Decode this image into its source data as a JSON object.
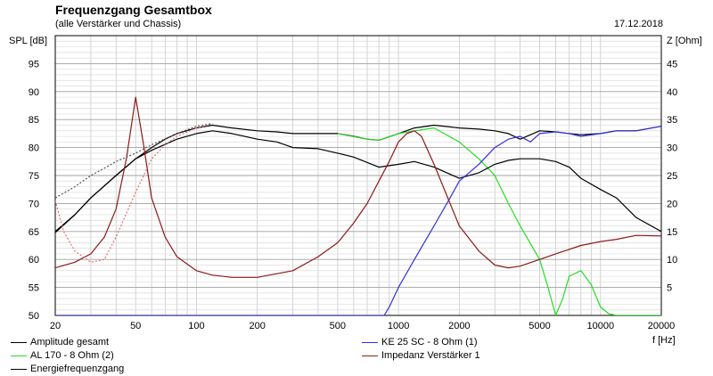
{
  "header": {
    "title": "Frequenzgang Gesamtbox",
    "subtitle": "(alle Verstärker und Chassis)",
    "date": "17.12.2018"
  },
  "chart_data": {
    "type": "line",
    "title": "Frequenzgang Gesamtbox",
    "subtitle": "(alle Verstärker und Chassis)",
    "xlabel": "f [Hz]",
    "ylabel": "SPL [dB]",
    "y2label": "Z [Ohm]",
    "xscale": "log",
    "xlim": [
      20,
      20000
    ],
    "ylim": [
      50,
      100
    ],
    "y2lim": [
      0,
      50
    ],
    "xticks": [
      20,
      50,
      100,
      200,
      500,
      1000,
      2000,
      5000,
      10000,
      20000
    ],
    "xtick_labels": [
      "20",
      "50",
      "100",
      "200",
      "500",
      "1000",
      "2000",
      "5000",
      "10000",
      "20000"
    ],
    "yticks": [
      50,
      55,
      60,
      65,
      70,
      75,
      80,
      85,
      90,
      95
    ],
    "y2ticks": [
      5,
      10,
      15,
      20,
      25,
      30,
      35,
      40,
      45
    ],
    "grid": true,
    "legend_position": "bottom",
    "series": [
      {
        "name": "Amplitude gesamt",
        "color": "#000000",
        "axis": "left",
        "x": [
          20,
          25,
          30,
          40,
          50,
          60,
          70,
          80,
          100,
          120,
          150,
          200,
          250,
          300,
          400,
          500,
          600,
          700,
          800,
          1000,
          1200,
          1500,
          2000,
          2500,
          3000,
          3500,
          4000,
          5000,
          6000,
          7000,
          8000,
          10000,
          12000,
          15000,
          20000
        ],
        "values": [
          64.8,
          68,
          71,
          75,
          78,
          80,
          81.5,
          82.5,
          83.5,
          84,
          83.5,
          83,
          82.8,
          82.5,
          82.5,
          82.5,
          82,
          81.5,
          81.3,
          82.5,
          83.5,
          84,
          83.5,
          83.3,
          83,
          82.5,
          81.5,
          83,
          82.8,
          82.5,
          82.3,
          82.5,
          83,
          83,
          83.8
        ]
      },
      {
        "name": "AL 170 - 8 Ohm (2)",
        "color": "#22dd22",
        "axis": "left",
        "x": [
          500,
          700,
          800,
          1000,
          1200,
          1500,
          2000,
          2500,
          3000,
          3500,
          4000,
          5000,
          5500,
          6000,
          6500,
          7000,
          8000,
          9000,
          10000,
          11000,
          12000,
          15000,
          20000
        ],
        "values": [
          82.5,
          81.5,
          81.3,
          82.5,
          83,
          83.5,
          81,
          78,
          75,
          70,
          66,
          60,
          55,
          50,
          53,
          57,
          58,
          55.5,
          51.5,
          50.3,
          50,
          50,
          50
        ]
      },
      {
        "name": "Energiefrequenzgang",
        "color": "#000000",
        "axis": "left",
        "x": [
          20,
          25,
          30,
          40,
          50,
          60,
          80,
          100,
          120,
          150,
          200,
          250,
          300,
          400,
          500,
          600,
          800,
          1000,
          1200,
          1500,
          2000,
          2500,
          3000,
          3500,
          4000,
          5000,
          6000,
          7000,
          8000,
          10000,
          12000,
          15000,
          20000
        ],
        "values": [
          65,
          68,
          71,
          75,
          78,
          79.5,
          81.5,
          82.5,
          83,
          82.5,
          81.5,
          81,
          80,
          79.8,
          79,
          78.3,
          76.5,
          77,
          77.5,
          76.5,
          74.5,
          75.5,
          77,
          77.7,
          78,
          78,
          77.5,
          76.5,
          74.5,
          72.5,
          71,
          67.5,
          65
        ]
      },
      {
        "name": "KE 25 SC - 8 Ohm (1)",
        "color": "#3030e0",
        "axis": "left",
        "x": [
          20,
          500,
          850,
          900,
          1000,
          1200,
          1500,
          1800,
          2000,
          2500,
          3000,
          3500,
          4000,
          4500,
          5000,
          6000,
          7000,
          8000,
          10000,
          12000,
          15000,
          20000
        ],
        "values": [
          50,
          50,
          50,
          51.5,
          55,
          60,
          66,
          71,
          74,
          77,
          80,
          81.5,
          82,
          81,
          82.5,
          82.8,
          82.5,
          82,
          82.5,
          83,
          83,
          83.8
        ]
      },
      {
        "name": "Impedanz Verstärker 1",
        "color": "#8b1a1a",
        "axis": "right",
        "x": [
          20,
          25,
          30,
          35,
          40,
          45,
          50,
          55,
          60,
          70,
          80,
          100,
          120,
          150,
          200,
          300,
          400,
          500,
          600,
          700,
          800,
          900,
          1000,
          1100,
          1200,
          1300,
          1500,
          1800,
          2000,
          2500,
          3000,
          3500,
          4000,
          5000,
          6000,
          8000,
          10000,
          12000,
          15000,
          20000
        ],
        "values": [
          8.5,
          9.5,
          11,
          14,
          19,
          28,
          39,
          30,
          21,
          14,
          10.5,
          8,
          7.2,
          6.8,
          6.8,
          8,
          10.5,
          13,
          16.5,
          20,
          24,
          27.5,
          31,
          32.5,
          33,
          32,
          27,
          20,
          16,
          11.5,
          9,
          8.5,
          8.8,
          10,
          11,
          12.5,
          13.2,
          13.6,
          14.3,
          14.2
        ]
      },
      {
        "name": "",
        "color": "#e07070",
        "axis": "right",
        "dashed": true,
        "x": [
          20,
          22,
          25,
          30,
          35,
          40,
          50,
          60,
          70,
          80,
          100,
          120
        ],
        "values": [
          20.5,
          15,
          11.5,
          9.5,
          10,
          14,
          22,
          28,
          30.5,
          32,
          33.5,
          34.2
        ]
      },
      {
        "name": "",
        "color": "#555555",
        "axis": "left",
        "dashed": true,
        "x": [
          20,
          25,
          30,
          35,
          40,
          50,
          60,
          80,
          100,
          120
        ],
        "values": [
          71,
          73,
          75,
          76.3,
          77.5,
          79,
          80.5,
          82.5,
          83.8,
          84.3
        ]
      }
    ]
  },
  "legend": [
    {
      "label": "Amplitude gesamt",
      "color": "#000000"
    },
    {
      "label": "AL 170 - 8 Ohm (2)",
      "color": "#22dd22"
    },
    {
      "label": "Energiefrequenzgang",
      "color": "#000000"
    },
    {
      "label": "KE 25 SC - 8 Ohm (1)",
      "color": "#3030e0"
    },
    {
      "label": "Impedanz Verstärker 1",
      "color": "#8b1a1a"
    }
  ]
}
